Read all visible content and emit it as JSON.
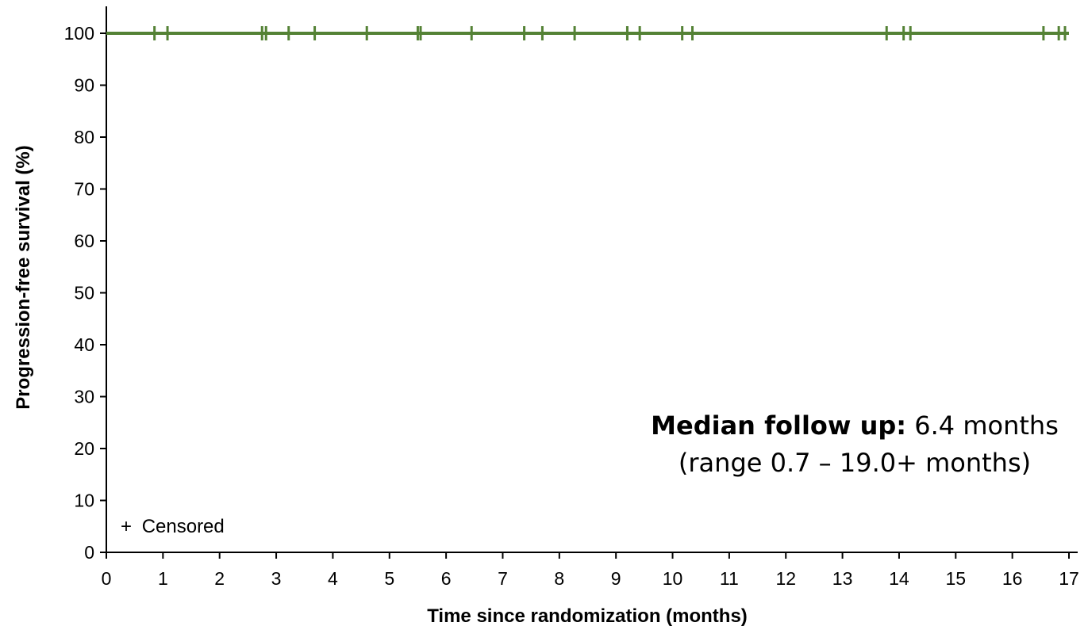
{
  "chart_data": {
    "type": "line",
    "xlabel": "Time since randomization (months)",
    "ylabel": "Progression-free survival (%)",
    "xlim": [
      0,
      17
    ],
    "ylim": [
      0,
      100
    ],
    "x_ticks": [
      "0",
      "1",
      "2",
      "3",
      "4",
      "5",
      "6",
      "7",
      "8",
      "9",
      "10",
      "11",
      "12",
      "13",
      "14",
      "15",
      "16",
      "17"
    ],
    "y_ticks": [
      "0",
      "10",
      "20",
      "30",
      "40",
      "50",
      "60",
      "70",
      "80",
      "90",
      "100"
    ],
    "series": [
      {
        "color": "#548235",
        "x": [
          0,
          17
        ],
        "y": [
          100,
          100
        ],
        "censored_x": [
          0.85,
          1.08,
          2.75,
          2.82,
          3.22,
          3.68,
          4.6,
          5.5,
          5.55,
          6.45,
          7.38,
          7.7,
          8.27,
          9.2,
          9.42,
          10.17,
          10.35,
          13.78,
          14.08,
          14.2,
          16.55,
          16.82,
          16.93
        ],
        "censored_y": 100
      }
    ],
    "legend": {
      "symbol": "+",
      "label": "Censored",
      "position": "bottom-left"
    },
    "annotation": {
      "bold_text": "Median follow up:",
      "text": " 6.4 months",
      "line2": "(range 0.7 – 19.0+ months)"
    },
    "grid": false
  }
}
